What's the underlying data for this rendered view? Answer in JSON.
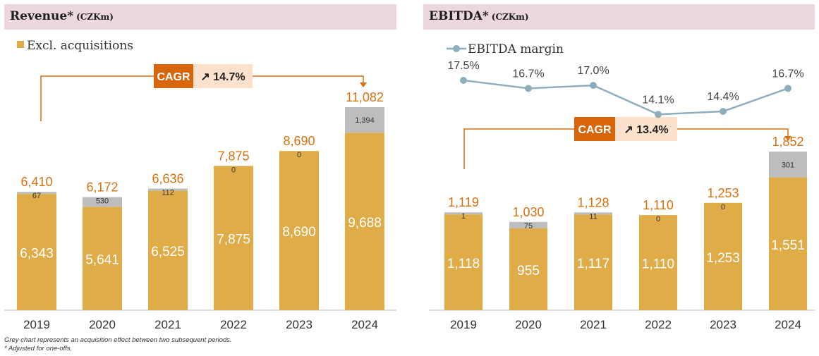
{
  "left_panel": {
    "title": "Revenue*",
    "unit": "(CZKm)"
  },
  "right_panel": {
    "title": "EBITDA*",
    "unit": "(CZKm)"
  },
  "footnotes": {
    "line1": "Grey chart represents an acquisition effect between two subsequent periods.",
    "line2": "* Adjusted for one-offs."
  },
  "colors": {
    "base": "#dfac48",
    "acquisition": "#bdbdbd",
    "total_label": "#d9700e",
    "cagr_box": "#d9650a",
    "cagr_value_bg": "#fce1cc",
    "margin_line": "#8faebd",
    "header_bg": "#ecd8dc"
  },
  "chart_data": [
    {
      "type": "bar",
      "title": "Revenue* (CZKm)",
      "categories": [
        "2019",
        "2020",
        "2021",
        "2022",
        "2023",
        "2024"
      ],
      "series": [
        {
          "name": "Excl. acquisitions",
          "values": [
            6343,
            5641,
            6525,
            7875,
            8690,
            9688
          ]
        },
        {
          "values": [
            67,
            530,
            112,
            0,
            0,
            1394
          ]
        }
      ],
      "base_labels": [
        "6,343",
        "5,641",
        "6,525",
        "7,875",
        "8,690",
        "9,688"
      ],
      "acq_labels": [
        "67",
        "530",
        "112",
        "0",
        "0",
        "1,394"
      ],
      "totals": [
        "6,410",
        "6,172",
        "6,636",
        "7,875",
        "8,690",
        "11,082"
      ],
      "legend": "Excl. acquisitions",
      "cagr": {
        "label": "CAGR",
        "value": "↗ 14.7%"
      },
      "ylim": [
        0,
        12000
      ]
    },
    {
      "type": "bar",
      "title": "EBITDA* (CZKm)",
      "categories": [
        "2019",
        "2020",
        "2021",
        "2022",
        "2023",
        "2024"
      ],
      "series": [
        {
          "values": [
            1118,
            955,
            1117,
            1110,
            1253,
            1551
          ]
        },
        {
          "values": [
            1,
            75,
            11,
            0,
            0,
            301
          ]
        }
      ],
      "base_labels": [
        "1,118",
        "955",
        "1,117",
        "1,110",
        "1,253",
        "1,551"
      ],
      "acq_labels": [
        "1",
        "75",
        "11",
        "0",
        "0",
        "301"
      ],
      "totals": [
        "1,119",
        "1,030",
        "1,128",
        "1,110",
        "1,253",
        "1,852"
      ],
      "line": {
        "name": "EBITDA margin",
        "values": [
          17.5,
          16.7,
          17.0,
          14.1,
          14.4,
          16.7
        ],
        "labels": [
          "17.5%",
          "16.7%",
          "17.0%",
          "14.1%",
          "14.4%",
          "16.7%"
        ]
      },
      "cagr": {
        "label": "CAGR",
        "value": "↗  13.4%"
      },
      "ylim": [
        0,
        2000
      ]
    }
  ]
}
